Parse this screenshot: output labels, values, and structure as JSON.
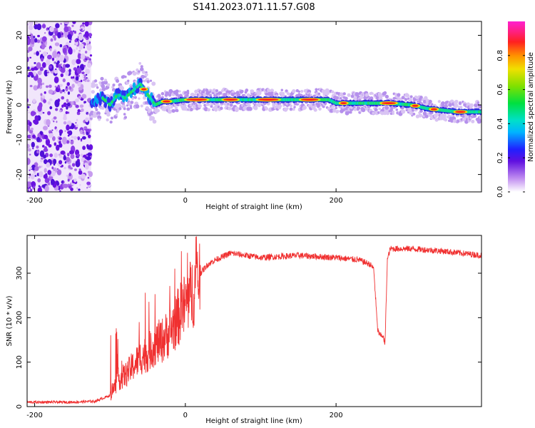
{
  "figure_title": "S141.2023.071.11.57.G08",
  "chart_data": [
    {
      "type": "heatmap",
      "xlabel": "Height of straight line (km)",
      "ylabel": "Frequency (Hz)",
      "xlim": [
        -210,
        393
      ],
      "ylim": [
        -25,
        24
      ],
      "xticks": [
        -200,
        0,
        200
      ],
      "yticks": [
        -20,
        -10,
        0,
        10,
        20
      ],
      "colorbar": {
        "label": "Normalized spectral amplitude",
        "range": [
          0,
          1
        ],
        "ticks": [
          0.0,
          0.2,
          0.4,
          0.6,
          0.8
        ],
        "colormap": "rainbow"
      },
      "noise_region": {
        "x_start": -210,
        "x_end": -125,
        "y_start": -25,
        "y_end": 24
      },
      "ridge": {
        "x": [
          -125,
          -110,
          -100,
          -90,
          -80,
          -70,
          -60,
          -50,
          -40,
          -30,
          -20,
          0,
          50,
          100,
          150,
          190,
          200,
          210,
          250,
          270,
          300,
          320,
          340,
          360,
          393
        ],
        "y": [
          1,
          2,
          0,
          3,
          2,
          4,
          6,
          3,
          0,
          1,
          1,
          1.5,
          1.5,
          1.5,
          1.5,
          1.5,
          0.5,
          0.5,
          0.5,
          0.5,
          0,
          -1,
          -1.5,
          -2,
          -2
        ]
      }
    },
    {
      "type": "line",
      "xlabel": "Height of straight line (km)",
      "ylabel": "SNR (10 * v/v)",
      "xlim": [
        -210,
        393
      ],
      "ylim": [
        0,
        385
      ],
      "xticks": [
        -200,
        0,
        200
      ],
      "yticks": [
        0,
        100,
        200,
        300
      ],
      "series": [
        {
          "x": [
            -210,
            -180,
            -150,
            -120,
            -100,
            -95,
            -90,
            -80,
            -70,
            -60,
            -50,
            -40,
            -30,
            -20,
            -10,
            0,
            10,
            15,
            20,
            30,
            40,
            60,
            100,
            150,
            200,
            230,
            245,
            250,
            255,
            258,
            262,
            265,
            268,
            272,
            278,
            300,
            340,
            393
          ],
          "y": [
            10,
            10,
            10,
            12,
            25,
            40,
            60,
            70,
            90,
            110,
            120,
            140,
            150,
            170,
            200,
            230,
            260,
            275,
            300,
            320,
            330,
            345,
            335,
            340,
            335,
            330,
            320,
            310,
            175,
            160,
            160,
            140,
            330,
            355,
            355,
            355,
            350,
            340
          ],
          "color": "#f03030"
        }
      ]
    }
  ]
}
